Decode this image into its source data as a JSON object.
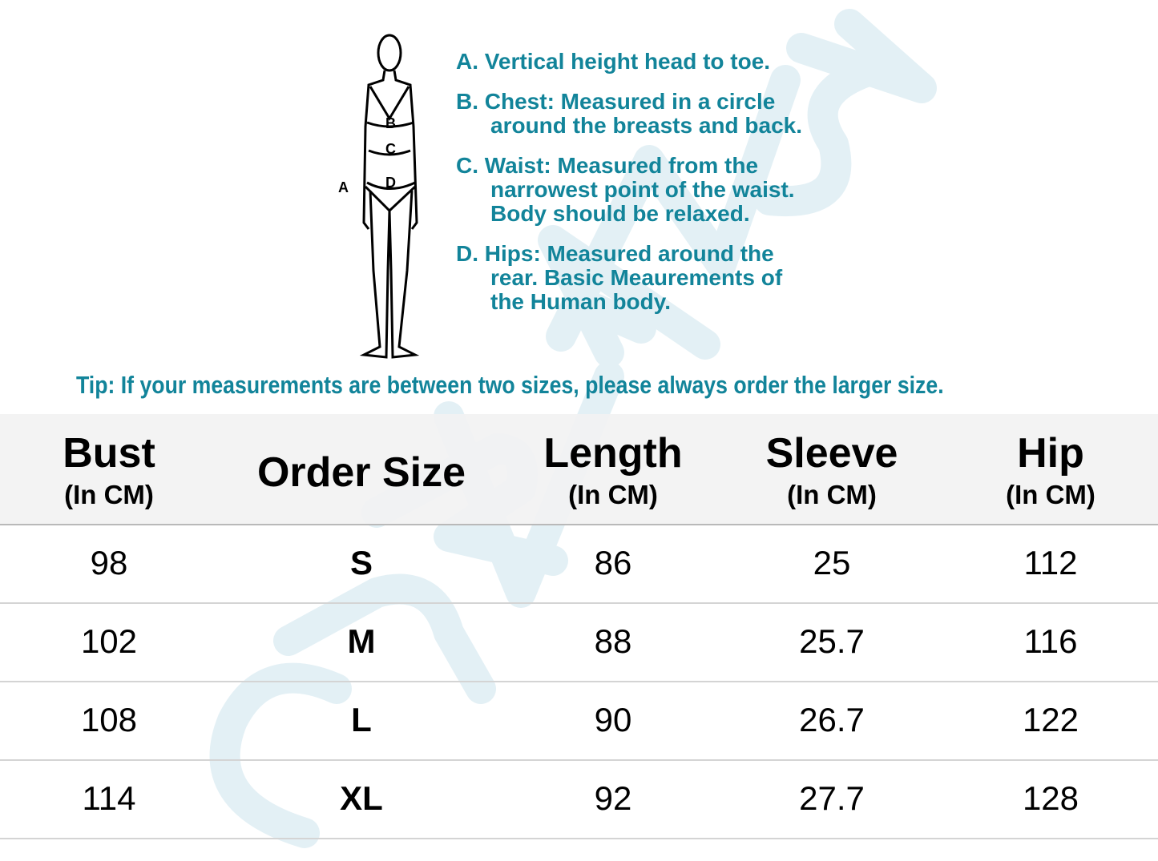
{
  "watermark": "CURVEMUSE",
  "figure": {
    "labels": [
      "A",
      "B",
      "C",
      "D"
    ]
  },
  "instructions": [
    {
      "first": "A. Vertical height head to toe.",
      "rest": []
    },
    {
      "first": "B. Chest: Measured in a circle",
      "rest": [
        "around the breasts and back."
      ]
    },
    {
      "first": "C. Waist: Measured from the",
      "rest": [
        "narrowest point of the waist.",
        "Body should be relaxed."
      ]
    },
    {
      "first": "D. Hips: Measured around the",
      "rest": [
        "rear. Basic Meaurements of",
        "the Human body."
      ]
    }
  ],
  "tip": "Tip: If your measurements are between two sizes, please always order the larger size.",
  "colors": {
    "accent": "#12849a",
    "header_bg": "#f2f2f2"
  },
  "table": {
    "headers": [
      {
        "main": "Bust",
        "sub": "(In CM)"
      },
      {
        "main": "Order Size",
        "sub": ""
      },
      {
        "main": "Length",
        "sub": "(In CM)"
      },
      {
        "main": "Sleeve",
        "sub": "(In CM)"
      },
      {
        "main": "Hip",
        "sub": "(In CM)"
      }
    ],
    "rows": [
      [
        "98",
        "S",
        "86",
        "25",
        "112"
      ],
      [
        "102",
        "M",
        "88",
        "25.7",
        "116"
      ],
      [
        "108",
        "L",
        "90",
        "26.7",
        "122"
      ],
      [
        "114",
        "XL",
        "92",
        "27.7",
        "128"
      ]
    ]
  }
}
